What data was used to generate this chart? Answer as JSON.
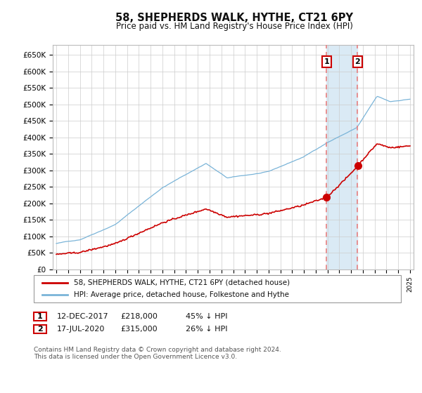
{
  "title": "58, SHEPHERDS WALK, HYTHE, CT21 6PY",
  "subtitle": "Price paid vs. HM Land Registry's House Price Index (HPI)",
  "ylim": [
    0,
    680000
  ],
  "yticks": [
    0,
    50000,
    100000,
    150000,
    200000,
    250000,
    300000,
    350000,
    400000,
    450000,
    500000,
    550000,
    600000,
    650000
  ],
  "ytick_labels": [
    "£0",
    "£50K",
    "£100K",
    "£150K",
    "£200K",
    "£250K",
    "£300K",
    "£350K",
    "£400K",
    "£450K",
    "£500K",
    "£550K",
    "£600K",
    "£650K"
  ],
  "hpi_color": "#7ab4d8",
  "price_color": "#cc0000",
  "marker_color": "#cc0000",
  "annotation_box_color": "#cc0000",
  "vline_color": "#e88080",
  "shade_color": "#daeaf5",
  "legend_label_price": "58, SHEPHERDS WALK, HYTHE, CT21 6PY (detached house)",
  "legend_label_hpi": "HPI: Average price, detached house, Folkestone and Hythe",
  "transaction1_year": 2017.92,
  "transaction1_price": 218000,
  "transaction1_date": "12-DEC-2017",
  "transaction1_pct": "45% ↓ HPI",
  "transaction2_year": 2020.54,
  "transaction2_price": 315000,
  "transaction2_date": "17-JUL-2020",
  "transaction2_pct": "26% ↓ HPI",
  "footer": "Contains HM Land Registry data © Crown copyright and database right 2024.\nThis data is licensed under the Open Government Licence v3.0.",
  "background_color": "#ffffff",
  "grid_color": "#cccccc",
  "xlim_start": 1994.7,
  "xlim_end": 2025.3
}
